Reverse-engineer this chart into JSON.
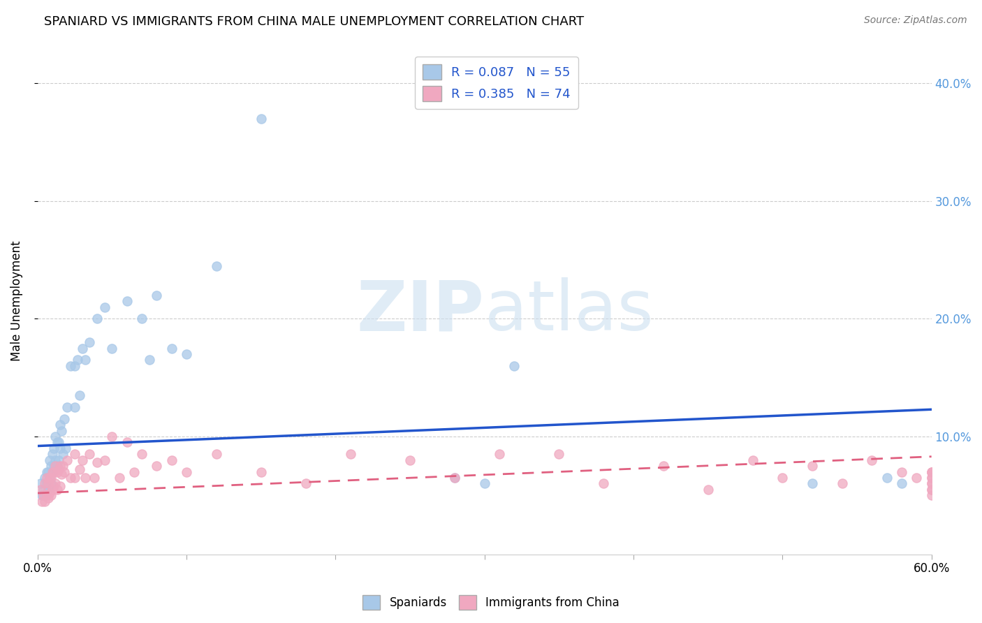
{
  "title": "SPANIARD VS IMMIGRANTS FROM CHINA MALE UNEMPLOYMENT CORRELATION CHART",
  "source": "Source: ZipAtlas.com",
  "ylabel": "Male Unemployment",
  "spaniards_R": "0.087",
  "spaniards_N": "55",
  "china_R": "0.385",
  "china_N": "74",
  "spaniard_color": "#a8c8e8",
  "china_color": "#f0a8c0",
  "trend_spaniard_color": "#2255cc",
  "trend_china_color": "#e06080",
  "watermark_color": "#cce0f0",
  "spaniard_x": [
    0.002,
    0.003,
    0.004,
    0.005,
    0.005,
    0.006,
    0.006,
    0.007,
    0.007,
    0.008,
    0.008,
    0.009,
    0.009,
    0.01,
    0.01,
    0.011,
    0.011,
    0.012,
    0.012,
    0.013,
    0.013,
    0.014,
    0.014,
    0.015,
    0.015,
    0.016,
    0.017,
    0.018,
    0.019,
    0.02,
    0.022,
    0.025,
    0.025,
    0.027,
    0.028,
    0.03,
    0.032,
    0.035,
    0.04,
    0.045,
    0.05,
    0.06,
    0.07,
    0.075,
    0.08,
    0.09,
    0.1,
    0.12,
    0.15,
    0.28,
    0.3,
    0.32,
    0.52,
    0.57,
    0.58
  ],
  "spaniard_y": [
    0.06,
    0.05,
    0.055,
    0.065,
    0.05,
    0.07,
    0.06,
    0.07,
    0.055,
    0.08,
    0.065,
    0.075,
    0.06,
    0.085,
    0.07,
    0.09,
    0.075,
    0.1,
    0.08,
    0.095,
    0.075,
    0.095,
    0.08,
    0.11,
    0.09,
    0.105,
    0.085,
    0.115,
    0.09,
    0.125,
    0.16,
    0.16,
    0.125,
    0.165,
    0.135,
    0.175,
    0.165,
    0.18,
    0.2,
    0.21,
    0.175,
    0.215,
    0.2,
    0.165,
    0.22,
    0.175,
    0.17,
    0.245,
    0.37,
    0.065,
    0.06,
    0.16,
    0.06,
    0.065,
    0.06
  ],
  "china_x": [
    0.002,
    0.003,
    0.004,
    0.005,
    0.005,
    0.006,
    0.006,
    0.007,
    0.007,
    0.008,
    0.008,
    0.009,
    0.009,
    0.01,
    0.01,
    0.011,
    0.011,
    0.012,
    0.012,
    0.013,
    0.013,
    0.014,
    0.015,
    0.015,
    0.016,
    0.017,
    0.018,
    0.02,
    0.022,
    0.025,
    0.025,
    0.028,
    0.03,
    0.032,
    0.035,
    0.038,
    0.04,
    0.045,
    0.05,
    0.055,
    0.06,
    0.065,
    0.07,
    0.08,
    0.09,
    0.1,
    0.12,
    0.15,
    0.18,
    0.21,
    0.25,
    0.28,
    0.31,
    0.35,
    0.38,
    0.42,
    0.45,
    0.48,
    0.5,
    0.52,
    0.54,
    0.56,
    0.58,
    0.59,
    0.6,
    0.6,
    0.6,
    0.6,
    0.6,
    0.6,
    0.6,
    0.6,
    0.6,
    0.6
  ],
  "china_y": [
    0.055,
    0.045,
    0.05,
    0.06,
    0.045,
    0.065,
    0.05,
    0.06,
    0.048,
    0.065,
    0.052,
    0.065,
    0.05,
    0.07,
    0.055,
    0.07,
    0.058,
    0.075,
    0.06,
    0.07,
    0.055,
    0.072,
    0.075,
    0.058,
    0.068,
    0.075,
    0.07,
    0.08,
    0.065,
    0.085,
    0.065,
    0.072,
    0.08,
    0.065,
    0.085,
    0.065,
    0.078,
    0.08,
    0.1,
    0.065,
    0.095,
    0.07,
    0.085,
    0.075,
    0.08,
    0.07,
    0.085,
    0.07,
    0.06,
    0.085,
    0.08,
    0.065,
    0.085,
    0.085,
    0.06,
    0.075,
    0.055,
    0.08,
    0.065,
    0.075,
    0.06,
    0.08,
    0.07,
    0.065,
    0.05,
    0.06,
    0.065,
    0.07,
    0.055,
    0.065,
    0.07,
    0.055,
    0.06,
    0.07
  ],
  "trend_sp_x0": 0.0,
  "trend_sp_x1": 0.6,
  "trend_sp_y0": 0.092,
  "trend_sp_y1": 0.123,
  "trend_ch_x0": 0.0,
  "trend_ch_x1": 0.6,
  "trend_ch_y0": 0.052,
  "trend_ch_y1": 0.083,
  "xlim": [
    0.0,
    0.6
  ],
  "ylim": [
    0.0,
    0.43
  ],
  "xtick_positions": [
    0.0,
    0.1,
    0.2,
    0.3,
    0.4,
    0.5,
    0.6
  ],
  "ytick_positions": [
    0.1,
    0.2,
    0.3,
    0.4
  ],
  "right_ytick_labels": [
    "10.0%",
    "20.0%",
    "30.0%",
    "40.0%"
  ],
  "right_label_color": "#5599dd"
}
